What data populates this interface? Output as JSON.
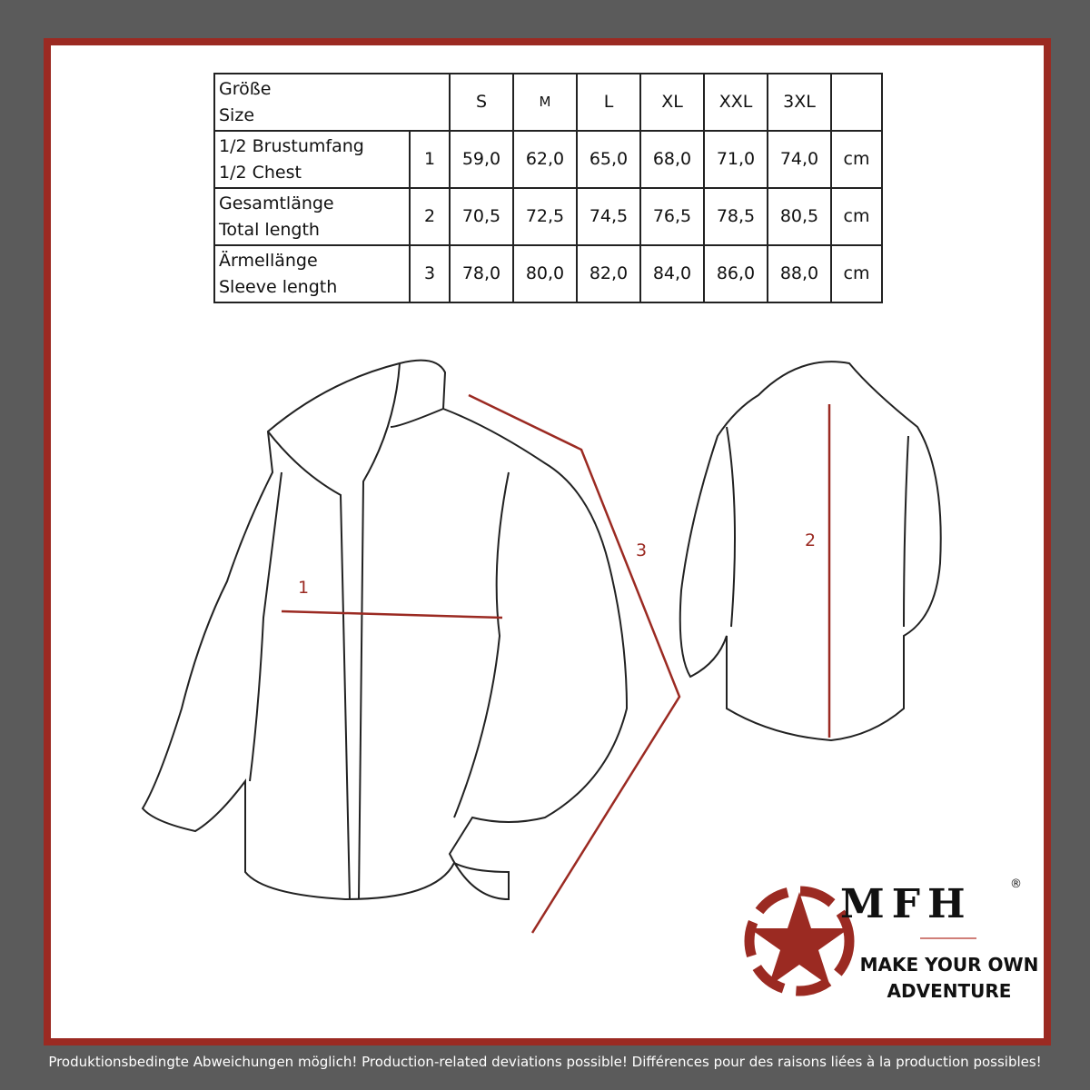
{
  "table": {
    "header": {
      "label_de": "Größe",
      "label_en": "Size",
      "sizes": [
        "S",
        "M",
        "L",
        "XL",
        "XXL",
        "3XL"
      ]
    },
    "rows": [
      {
        "label_de": "1/2 Brustumfang",
        "label_en": "1/2 Chest",
        "num": "1",
        "values": [
          "59,0",
          "62,0",
          "65,0",
          "68,0",
          "71,0",
          "74,0"
        ],
        "unit": "cm"
      },
      {
        "label_de": "Gesamtlänge",
        "label_en": "Total length",
        "num": "2",
        "values": [
          "70,5",
          "72,5",
          "74,5",
          "76,5",
          "78,5",
          "80,5"
        ],
        "unit": "cm"
      },
      {
        "label_de": "Ärmellänge",
        "label_en": "Sleeve length",
        "num": "3",
        "values": [
          "78,0",
          "80,0",
          "82,0",
          "84,0",
          "86,0",
          "88,0"
        ],
        "unit": "cm"
      }
    ]
  },
  "measure_labels": {
    "chest": "1",
    "length": "2",
    "sleeve": "3"
  },
  "logo": {
    "brand": "MFH",
    "registered": "®",
    "tagline_1": "MAKE YOUR OWN",
    "tagline_2": "ADVENTURE"
  },
  "footer": "Produktionsbedingte Abweichungen möglich! Production-related deviations possible! Différences pour des raisons liées à la production possibles!",
  "colors": {
    "accent": "#9b2a22",
    "background": "#5b5b5b"
  }
}
